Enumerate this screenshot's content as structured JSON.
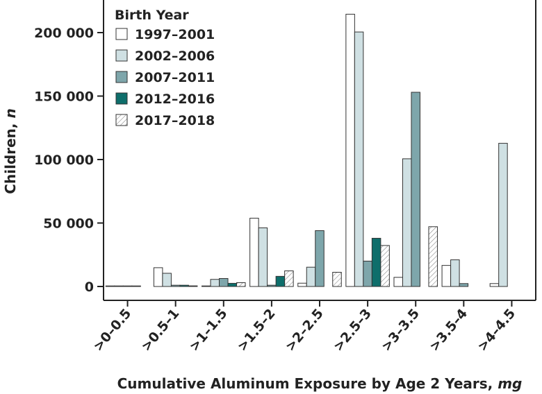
{
  "chart_data": {
    "type": "bar",
    "xlabel_main": "Cumulative Aluminum Exposure by Age 2 Years, ",
    "xlabel_unit": "mg",
    "ylabel_main": "Children, ",
    "ylabel_unit": "n",
    "ylim": [
      0,
      225000
    ],
    "yticks": [
      0,
      50000,
      100000,
      150000,
      200000
    ],
    "ytick_labels": [
      "0",
      "50 000",
      "100 000",
      "150 000",
      "200 000"
    ],
    "categories": [
      ">0–0.5",
      ">0.5–1",
      ">1–1.5",
      ">1.5–2",
      ">2–2.5",
      ">2.5–3",
      ">3–3.5",
      ">3.5–4",
      ">4–4.5"
    ],
    "legend_title": "Birth Year",
    "legend_position": "top-left",
    "series": [
      {
        "name": "1997–2001",
        "color": "#ffffff",
        "pattern": "none",
        "values": [
          200,
          14800,
          400,
          53800,
          2600,
          214500,
          7200,
          16600,
          2300
        ]
      },
      {
        "name": "2002–2006",
        "color": "#cfe0e3",
        "pattern": "none",
        "values": [
          200,
          10400,
          5600,
          46200,
          15200,
          200500,
          100600,
          21000,
          112800
        ]
      },
      {
        "name": "2007–2011",
        "color": "#7ea6ab",
        "pattern": "none",
        "values": [
          300,
          1000,
          6300,
          1000,
          44000,
          20000,
          153000,
          2300,
          0
        ]
      },
      {
        "name": "2012–2016",
        "color": "#0e6e6b",
        "pattern": "none",
        "values": [
          300,
          1000,
          2500,
          8000,
          0,
          38000,
          0,
          0,
          0
        ]
      },
      {
        "name": "2017–2018",
        "color": "#ffffff",
        "pattern": "hatch",
        "values": [
          0,
          500,
          3000,
          12300,
          11200,
          32300,
          47100,
          0,
          0
        ]
      }
    ]
  }
}
